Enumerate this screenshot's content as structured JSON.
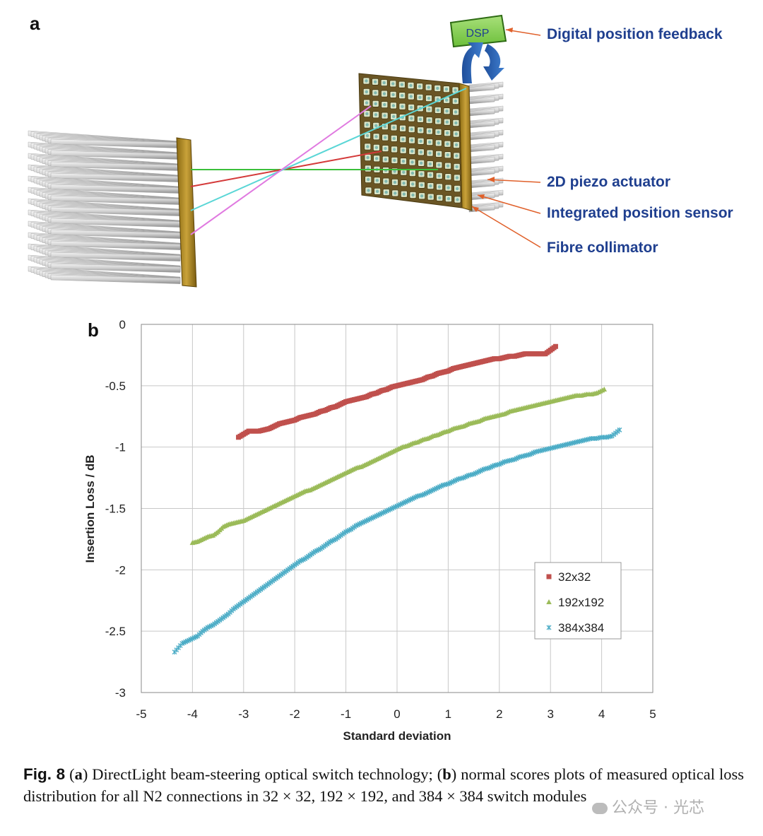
{
  "panel_a": {
    "letter": "a",
    "dsp_label": "DSP",
    "callouts": {
      "digital_feedback": "Digital position feedback",
      "piezo": "2D piezo actuator",
      "position_sensor": "Integrated position sensor",
      "collimator": "Fibre collimator"
    }
  },
  "panel_b": {
    "letter": "b"
  },
  "chart_data": {
    "type": "scatter",
    "xlabel": "Standard deviation",
    "ylabel": "Insertion Loss / dB",
    "xlim": [
      -5,
      5
    ],
    "ylim": [
      -3,
      0
    ],
    "xticks": [
      "-5",
      "-4",
      "-3",
      "-2",
      "-1",
      "0",
      "1",
      "2",
      "3",
      "4",
      "5"
    ],
    "yticks": [
      "0",
      "-0.5",
      "-1",
      "-1.5",
      "-2",
      "-2.5",
      "-3"
    ],
    "grid": true,
    "legend_position": "lower-right",
    "series": [
      {
        "name": "32x32",
        "color": "#c0504d",
        "marker": "square",
        "points": [
          [
            -3.1,
            -0.92
          ],
          [
            -2.9,
            -0.87
          ],
          [
            -2.8,
            -0.87
          ],
          [
            -2.7,
            -0.87
          ],
          [
            -2.6,
            -0.86
          ],
          [
            -2.5,
            -0.85
          ],
          [
            -2.4,
            -0.83
          ],
          [
            -2.3,
            -0.81
          ],
          [
            -2.2,
            -0.8
          ],
          [
            -2.1,
            -0.79
          ],
          [
            -2.0,
            -0.78
          ],
          [
            -1.9,
            -0.76
          ],
          [
            -1.8,
            -0.75
          ],
          [
            -1.7,
            -0.74
          ],
          [
            -1.6,
            -0.73
          ],
          [
            -1.5,
            -0.71
          ],
          [
            -1.4,
            -0.7
          ],
          [
            -1.3,
            -0.68
          ],
          [
            -1.2,
            -0.67
          ],
          [
            -1.1,
            -0.65
          ],
          [
            -1.0,
            -0.63
          ],
          [
            -0.9,
            -0.62
          ],
          [
            -0.8,
            -0.61
          ],
          [
            -0.7,
            -0.6
          ],
          [
            -0.6,
            -0.59
          ],
          [
            -0.5,
            -0.57
          ],
          [
            -0.4,
            -0.56
          ],
          [
            -0.3,
            -0.54
          ],
          [
            -0.2,
            -0.53
          ],
          [
            -0.1,
            -0.51
          ],
          [
            0.0,
            -0.5
          ],
          [
            0.1,
            -0.49
          ],
          [
            0.2,
            -0.48
          ],
          [
            0.3,
            -0.47
          ],
          [
            0.4,
            -0.46
          ],
          [
            0.5,
            -0.45
          ],
          [
            0.6,
            -0.43
          ],
          [
            0.7,
            -0.42
          ],
          [
            0.8,
            -0.4
          ],
          [
            0.9,
            -0.39
          ],
          [
            1.0,
            -0.38
          ],
          [
            1.1,
            -0.36
          ],
          [
            1.2,
            -0.35
          ],
          [
            1.3,
            -0.34
          ],
          [
            1.4,
            -0.33
          ],
          [
            1.5,
            -0.32
          ],
          [
            1.6,
            -0.31
          ],
          [
            1.7,
            -0.3
          ],
          [
            1.8,
            -0.29
          ],
          [
            1.9,
            -0.28
          ],
          [
            2.0,
            -0.28
          ],
          [
            2.1,
            -0.27
          ],
          [
            2.2,
            -0.26
          ],
          [
            2.3,
            -0.26
          ],
          [
            2.4,
            -0.25
          ],
          [
            2.5,
            -0.24
          ],
          [
            2.6,
            -0.24
          ],
          [
            2.7,
            -0.24
          ],
          [
            2.9,
            -0.24
          ],
          [
            3.1,
            -0.18
          ]
        ]
      },
      {
        "name": "192x192",
        "color": "#9bbb59",
        "marker": "triangle",
        "points": [
          [
            -4.0,
            -1.78
          ],
          [
            -3.9,
            -1.77
          ],
          [
            -3.8,
            -1.75
          ],
          [
            -3.7,
            -1.73
          ],
          [
            -3.6,
            -1.72
          ],
          [
            -3.5,
            -1.69
          ],
          [
            -3.4,
            -1.65
          ],
          [
            -3.3,
            -1.63
          ],
          [
            -3.2,
            -1.62
          ],
          [
            -3.1,
            -1.61
          ],
          [
            -3.0,
            -1.6
          ],
          [
            -2.9,
            -1.58
          ],
          [
            -2.8,
            -1.56
          ],
          [
            -2.7,
            -1.54
          ],
          [
            -2.6,
            -1.52
          ],
          [
            -2.5,
            -1.5
          ],
          [
            -2.4,
            -1.48
          ],
          [
            -2.3,
            -1.46
          ],
          [
            -2.2,
            -1.44
          ],
          [
            -2.1,
            -1.42
          ],
          [
            -2.0,
            -1.4
          ],
          [
            -1.9,
            -1.38
          ],
          [
            -1.8,
            -1.36
          ],
          [
            -1.7,
            -1.35
          ],
          [
            -1.6,
            -1.33
          ],
          [
            -1.5,
            -1.31
          ],
          [
            -1.4,
            -1.29
          ],
          [
            -1.3,
            -1.27
          ],
          [
            -1.2,
            -1.25
          ],
          [
            -1.1,
            -1.23
          ],
          [
            -1.0,
            -1.21
          ],
          [
            -0.9,
            -1.19
          ],
          [
            -0.8,
            -1.17
          ],
          [
            -0.7,
            -1.16
          ],
          [
            -0.6,
            -1.14
          ],
          [
            -0.5,
            -1.12
          ],
          [
            -0.4,
            -1.1
          ],
          [
            -0.3,
            -1.08
          ],
          [
            -0.2,
            -1.06
          ],
          [
            -0.1,
            -1.04
          ],
          [
            0.0,
            -1.02
          ],
          [
            0.1,
            -1.0
          ],
          [
            0.2,
            -0.99
          ],
          [
            0.3,
            -0.97
          ],
          [
            0.4,
            -0.96
          ],
          [
            0.5,
            -0.94
          ],
          [
            0.6,
            -0.93
          ],
          [
            0.7,
            -0.91
          ],
          [
            0.8,
            -0.9
          ],
          [
            0.9,
            -0.88
          ],
          [
            1.0,
            -0.87
          ],
          [
            1.1,
            -0.85
          ],
          [
            1.2,
            -0.84
          ],
          [
            1.3,
            -0.83
          ],
          [
            1.4,
            -0.81
          ],
          [
            1.5,
            -0.8
          ],
          [
            1.6,
            -0.79
          ],
          [
            1.7,
            -0.77
          ],
          [
            1.8,
            -0.76
          ],
          [
            1.9,
            -0.75
          ],
          [
            2.0,
            -0.74
          ],
          [
            2.1,
            -0.73
          ],
          [
            2.2,
            -0.71
          ],
          [
            2.3,
            -0.7
          ],
          [
            2.4,
            -0.69
          ],
          [
            2.5,
            -0.68
          ],
          [
            2.6,
            -0.67
          ],
          [
            2.7,
            -0.66
          ],
          [
            2.8,
            -0.65
          ],
          [
            2.9,
            -0.64
          ],
          [
            3.0,
            -0.63
          ],
          [
            3.1,
            -0.62
          ],
          [
            3.2,
            -0.61
          ],
          [
            3.3,
            -0.6
          ],
          [
            3.4,
            -0.59
          ],
          [
            3.5,
            -0.58
          ],
          [
            3.6,
            -0.58
          ],
          [
            3.7,
            -0.57
          ],
          [
            3.8,
            -0.57
          ],
          [
            3.9,
            -0.56
          ],
          [
            4.05,
            -0.53
          ]
        ]
      },
      {
        "name": "384x384",
        "color": "#4bacc6",
        "marker": "star",
        "points": [
          [
            -4.35,
            -2.67
          ],
          [
            -4.2,
            -2.6
          ],
          [
            -4.1,
            -2.58
          ],
          [
            -4.0,
            -2.56
          ],
          [
            -3.9,
            -2.54
          ],
          [
            -3.8,
            -2.5
          ],
          [
            -3.7,
            -2.47
          ],
          [
            -3.6,
            -2.45
          ],
          [
            -3.5,
            -2.42
          ],
          [
            -3.4,
            -2.39
          ],
          [
            -3.3,
            -2.36
          ],
          [
            -3.2,
            -2.32
          ],
          [
            -3.1,
            -2.29
          ],
          [
            -3.0,
            -2.26
          ],
          [
            -2.9,
            -2.23
          ],
          [
            -2.8,
            -2.2
          ],
          [
            -2.7,
            -2.17
          ],
          [
            -2.6,
            -2.14
          ],
          [
            -2.5,
            -2.11
          ],
          [
            -2.4,
            -2.08
          ],
          [
            -2.3,
            -2.05
          ],
          [
            -2.2,
            -2.02
          ],
          [
            -2.1,
            -1.99
          ],
          [
            -2.0,
            -1.96
          ],
          [
            -1.9,
            -1.93
          ],
          [
            -1.8,
            -1.91
          ],
          [
            -1.7,
            -1.88
          ],
          [
            -1.6,
            -1.85
          ],
          [
            -1.5,
            -1.83
          ],
          [
            -1.4,
            -1.8
          ],
          [
            -1.3,
            -1.77
          ],
          [
            -1.2,
            -1.75
          ],
          [
            -1.1,
            -1.72
          ],
          [
            -1.0,
            -1.69
          ],
          [
            -0.9,
            -1.67
          ],
          [
            -0.8,
            -1.64
          ],
          [
            -0.7,
            -1.62
          ],
          [
            -0.6,
            -1.6
          ],
          [
            -0.5,
            -1.58
          ],
          [
            -0.4,
            -1.56
          ],
          [
            -0.3,
            -1.54
          ],
          [
            -0.2,
            -1.52
          ],
          [
            -0.1,
            -1.5
          ],
          [
            0.0,
            -1.48
          ],
          [
            0.1,
            -1.46
          ],
          [
            0.2,
            -1.44
          ],
          [
            0.3,
            -1.42
          ],
          [
            0.4,
            -1.4
          ],
          [
            0.5,
            -1.39
          ],
          [
            0.6,
            -1.37
          ],
          [
            0.7,
            -1.35
          ],
          [
            0.8,
            -1.33
          ],
          [
            0.9,
            -1.31
          ],
          [
            1.0,
            -1.3
          ],
          [
            1.1,
            -1.28
          ],
          [
            1.2,
            -1.26
          ],
          [
            1.3,
            -1.25
          ],
          [
            1.4,
            -1.23
          ],
          [
            1.5,
            -1.22
          ],
          [
            1.6,
            -1.2
          ],
          [
            1.7,
            -1.18
          ],
          [
            1.8,
            -1.17
          ],
          [
            1.9,
            -1.15
          ],
          [
            2.0,
            -1.14
          ],
          [
            2.1,
            -1.12
          ],
          [
            2.2,
            -1.11
          ],
          [
            2.3,
            -1.1
          ],
          [
            2.4,
            -1.08
          ],
          [
            2.5,
            -1.07
          ],
          [
            2.6,
            -1.06
          ],
          [
            2.7,
            -1.04
          ],
          [
            2.8,
            -1.03
          ],
          [
            2.9,
            -1.02
          ],
          [
            3.0,
            -1.01
          ],
          [
            3.1,
            -1.0
          ],
          [
            3.2,
            -0.99
          ],
          [
            3.3,
            -0.98
          ],
          [
            3.4,
            -0.97
          ],
          [
            3.5,
            -0.96
          ],
          [
            3.6,
            -0.95
          ],
          [
            3.7,
            -0.94
          ],
          [
            3.8,
            -0.93
          ],
          [
            3.9,
            -0.93
          ],
          [
            4.0,
            -0.92
          ],
          [
            4.1,
            -0.92
          ],
          [
            4.2,
            -0.91
          ],
          [
            4.35,
            -0.86
          ]
        ]
      }
    ]
  },
  "caption": {
    "fig_label": "Fig. 8",
    "part_a_letter": "a",
    "part_a_text": "DirectLight beam-steering optical switch technology;",
    "part_b_letter": "b",
    "part_b_text": "normal scores plots of measured optical loss distribution for all N2 connections in 32 × 32, 192 × 192, and 384 × 384 switch modules"
  },
  "watermark": {
    "text": "公众号 · 光芯"
  }
}
